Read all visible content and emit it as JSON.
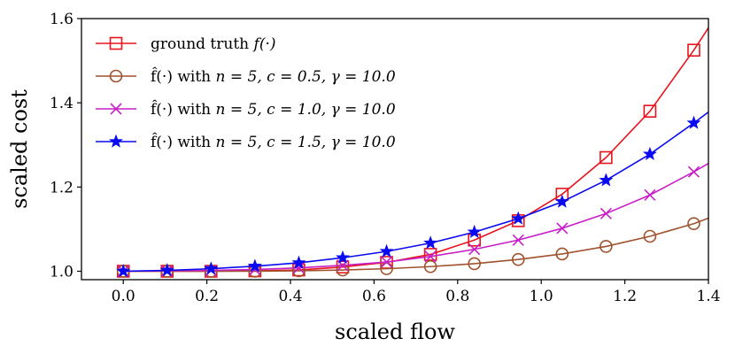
{
  "chart_data": {
    "type": "line",
    "xlabel": "scaled flow",
    "ylabel": "scaled cost",
    "xlim": [
      -0.1,
      1.4
    ],
    "ylim": [
      0.98,
      1.6
    ],
    "xticks": [
      0.0,
      0.2,
      0.4,
      0.6,
      0.8,
      1.0,
      1.2,
      1.4
    ],
    "xtick_labels": [
      "0.0",
      "0.2",
      "0.4",
      "0.6",
      "0.8",
      "1.0",
      "1.2",
      "1.4"
    ],
    "yticks": [
      1.0,
      1.2,
      1.4,
      1.6
    ],
    "ytick_labels": [
      "1.0",
      "1.2",
      "1.4",
      "1.6"
    ],
    "grid": false,
    "legend_position": "top-left",
    "series": [
      {
        "name": "ground truth f(·)",
        "color": "#e8141c",
        "marker": "square",
        "x": [
          0.0,
          0.105,
          0.21,
          0.315,
          0.42,
          0.525,
          0.63,
          0.735,
          0.84,
          0.945,
          1.05,
          1.155,
          1.26,
          1.365
        ],
        "y": [
          1.0,
          1.0,
          1.0,
          1.001,
          1.003,
          1.01,
          1.021,
          1.04,
          1.074,
          1.12,
          1.183,
          1.27,
          1.38,
          1.525
        ],
        "curve_x": [
          0.0,
          0.105,
          0.21,
          0.315,
          0.42,
          0.525,
          0.63,
          0.735,
          0.84,
          0.945,
          1.05,
          1.155,
          1.26,
          1.365,
          1.4
        ],
        "curve_y": [
          1.0,
          1.0,
          1.0,
          1.001,
          1.003,
          1.01,
          1.021,
          1.04,
          1.074,
          1.12,
          1.183,
          1.27,
          1.38,
          1.525,
          1.578
        ]
      },
      {
        "name": "f̂(·) with n = 5, c = 0.5, γ = 10.0",
        "color": "#a0522d",
        "marker": "circle",
        "x": [
          0.0,
          0.105,
          0.21,
          0.315,
          0.42,
          0.525,
          0.63,
          0.735,
          0.84,
          0.945,
          1.05,
          1.155,
          1.26,
          1.365
        ],
        "y": [
          1.0,
          1.0,
          1.0,
          1.0,
          1.001,
          1.003,
          1.006,
          1.011,
          1.018,
          1.028,
          1.041,
          1.059,
          1.083,
          1.113
        ],
        "curve_x": [
          0.0,
          0.105,
          0.21,
          0.315,
          0.42,
          0.525,
          0.63,
          0.735,
          0.84,
          0.945,
          1.05,
          1.155,
          1.26,
          1.365,
          1.4
        ],
        "curve_y": [
          1.0,
          1.0,
          1.0,
          1.0,
          1.001,
          1.003,
          1.006,
          1.011,
          1.018,
          1.028,
          1.041,
          1.059,
          1.083,
          1.113,
          1.126
        ]
      },
      {
        "name": "f̂(·) with n = 5, c = 1.0, γ = 10.0",
        "color": "#c71fc7",
        "marker": "x",
        "x": [
          0.0,
          0.105,
          0.21,
          0.315,
          0.42,
          0.525,
          0.63,
          0.735,
          0.84,
          0.945,
          1.05,
          1.155,
          1.26,
          1.365
        ],
        "y": [
          1.0,
          1.001,
          1.002,
          1.004,
          1.008,
          1.014,
          1.022,
          1.035,
          1.052,
          1.074,
          1.102,
          1.137,
          1.181,
          1.236
        ],
        "curve_x": [
          0.0,
          0.105,
          0.21,
          0.315,
          0.42,
          0.525,
          0.63,
          0.735,
          0.84,
          0.945,
          1.05,
          1.155,
          1.26,
          1.365,
          1.4
        ],
        "curve_y": [
          1.0,
          1.001,
          1.002,
          1.004,
          1.008,
          1.014,
          1.022,
          1.035,
          1.052,
          1.074,
          1.102,
          1.137,
          1.181,
          1.236,
          1.256
        ]
      },
      {
        "name": "f̂(·) with n = 5, c = 1.5, γ = 10.0",
        "color": "#0a0af0",
        "marker": "star",
        "x": [
          0.0,
          0.105,
          0.21,
          0.315,
          0.42,
          0.525,
          0.63,
          0.735,
          0.84,
          0.945,
          1.05,
          1.155,
          1.26,
          1.365
        ],
        "y": [
          1.0,
          1.002,
          1.006,
          1.012,
          1.02,
          1.032,
          1.047,
          1.067,
          1.093,
          1.125,
          1.165,
          1.216,
          1.278,
          1.352
        ],
        "curve_x": [
          0.0,
          0.105,
          0.21,
          0.315,
          0.42,
          0.525,
          0.63,
          0.735,
          0.84,
          0.945,
          1.05,
          1.155,
          1.26,
          1.365,
          1.4
        ],
        "curve_y": [
          1.0,
          1.002,
          1.006,
          1.012,
          1.02,
          1.032,
          1.047,
          1.067,
          1.093,
          1.125,
          1.165,
          1.216,
          1.278,
          1.352,
          1.378
        ]
      }
    ],
    "legend": [
      {
        "prefix": "ground truth ",
        "math": "f(·)"
      },
      {
        "prefix": "f̂(·) with ",
        "math": "n = 5, c = 0.5, γ = 10.0"
      },
      {
        "prefix": "f̂(·) with ",
        "math": "n = 5, c = 1.0, γ = 10.0"
      },
      {
        "prefix": "f̂(·) with ",
        "math": "n = 5, c = 1.5, γ = 10.0"
      }
    ]
  }
}
